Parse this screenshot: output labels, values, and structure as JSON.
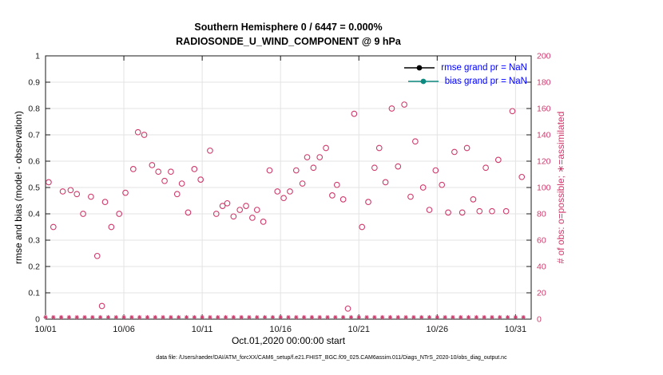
{
  "footer": {
    "text": "data file: /Users/raeder/DAI/ATM_forcXX/CAM6_setup/f.e21.FHIST_BGC.f09_025.CAM6assim.011/Diags_NTrS_2020-10/obs_diag_output.nc"
  },
  "legend": {
    "text_color": "#0000ff",
    "items": [
      {
        "label": "rmse grand pr = NaN",
        "color": "#000000"
      },
      {
        "label": "bias grand pr = NaN",
        "color": "#0d8a80"
      }
    ]
  },
  "chart_data": {
    "type": "scatter",
    "title": "Southern Hemisphere 0 / 6447 = 0.000%",
    "subtitle": "RADIOSONDE_U_WIND_COMPONENT @ 9 hPa",
    "xlabel": "Oct.01,2020 00:00:00 start",
    "ylabel_left": "rmse and bias (model - observation)",
    "ylabel_right": "# of obs: o=possible; ∗=assimilated",
    "grid": true,
    "legend_position": "top-right",
    "accent_color": "#ce3a6c",
    "xlim": [
      1,
      32
    ],
    "xticks": [
      {
        "day": 1,
        "label": "10/01"
      },
      {
        "day": 6,
        "label": "10/06"
      },
      {
        "day": 11,
        "label": "10/11"
      },
      {
        "day": 16,
        "label": "10/16"
      },
      {
        "day": 21,
        "label": "10/21"
      },
      {
        "day": 26,
        "label": "10/26"
      },
      {
        "day": 31,
        "label": "10/31"
      }
    ],
    "ylim_left": [
      0,
      1
    ],
    "yticks_left": [
      0,
      0.1,
      0.2,
      0.3,
      0.4,
      0.5,
      0.6,
      0.7,
      0.8,
      0.9,
      1
    ],
    "ylim_right": [
      0,
      200
    ],
    "yticks_right": [
      0,
      20,
      40,
      60,
      80,
      100,
      120,
      140,
      160,
      180,
      200
    ],
    "series": [
      {
        "name": "possible-obs",
        "marker": "o",
        "axis": "right",
        "color": "#ce3a6c",
        "points": [
          [
            1.2,
            104
          ],
          [
            1.5,
            70
          ],
          [
            2.1,
            97
          ],
          [
            2.6,
            98
          ],
          [
            3.0,
            95
          ],
          [
            3.4,
            80
          ],
          [
            3.9,
            93
          ],
          [
            4.3,
            48
          ],
          [
            4.6,
            10
          ],
          [
            4.8,
            89
          ],
          [
            5.2,
            70
          ],
          [
            5.7,
            80
          ],
          [
            6.1,
            96
          ],
          [
            6.6,
            114
          ],
          [
            6.9,
            142
          ],
          [
            7.3,
            140
          ],
          [
            7.8,
            117
          ],
          [
            8.2,
            112
          ],
          [
            8.6,
            105
          ],
          [
            9.0,
            112
          ],
          [
            9.4,
            95
          ],
          [
            9.7,
            103
          ],
          [
            10.1,
            81
          ],
          [
            10.5,
            114
          ],
          [
            10.9,
            106
          ],
          [
            11.5,
            128
          ],
          [
            11.9,
            80
          ],
          [
            12.3,
            86
          ],
          [
            12.6,
            88
          ],
          [
            13.0,
            78
          ],
          [
            13.4,
            83
          ],
          [
            13.8,
            86
          ],
          [
            14.2,
            77
          ],
          [
            14.5,
            83
          ],
          [
            14.9,
            74
          ],
          [
            15.3,
            113
          ],
          [
            15.8,
            97
          ],
          [
            16.2,
            92
          ],
          [
            16.6,
            97
          ],
          [
            17.0,
            113
          ],
          [
            17.4,
            103
          ],
          [
            17.7,
            123
          ],
          [
            18.1,
            115
          ],
          [
            18.5,
            123
          ],
          [
            18.9,
            130
          ],
          [
            19.3,
            94
          ],
          [
            19.6,
            102
          ],
          [
            20.0,
            91
          ],
          [
            20.3,
            8
          ],
          [
            20.7,
            156
          ],
          [
            21.2,
            70
          ],
          [
            21.6,
            89
          ],
          [
            22.0,
            115
          ],
          [
            22.3,
            130
          ],
          [
            22.7,
            104
          ],
          [
            23.1,
            160
          ],
          [
            23.5,
            116
          ],
          [
            23.9,
            163
          ],
          [
            24.3,
            93
          ],
          [
            24.6,
            135
          ],
          [
            25.1,
            100
          ],
          [
            25.5,
            83
          ],
          [
            25.9,
            113
          ],
          [
            26.3,
            102
          ],
          [
            26.7,
            81
          ],
          [
            27.1,
            127
          ],
          [
            27.6,
            81
          ],
          [
            27.9,
            130
          ],
          [
            28.3,
            91
          ],
          [
            28.7,
            82
          ],
          [
            29.1,
            115
          ],
          [
            29.5,
            82
          ],
          [
            29.9,
            121
          ],
          [
            30.4,
            82
          ],
          [
            30.8,
            158
          ],
          [
            31.4,
            108
          ]
        ]
      },
      {
        "name": "assimilated-obs",
        "marker": "*",
        "axis": "right",
        "color": "#ce3a6c",
        "uniform": {
          "day_start": 1,
          "day_end": 31.5,
          "day_step": 0.5,
          "value": 0
        }
      },
      {
        "name": "rmse",
        "legend_label": "rmse grand pr = NaN",
        "axis": "left",
        "color": "#000000",
        "grand_value": "NaN",
        "points": []
      },
      {
        "name": "bias",
        "legend_label": "bias grand pr = NaN",
        "axis": "left",
        "color": "#0d8a80",
        "grand_value": "NaN",
        "points": []
      }
    ]
  }
}
